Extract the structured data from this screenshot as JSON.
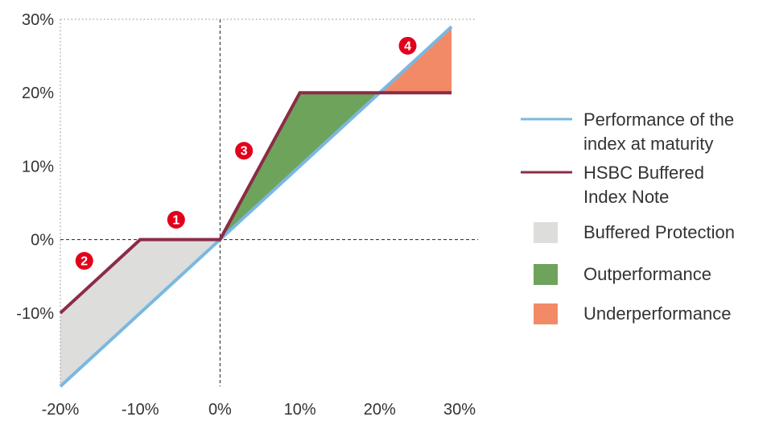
{
  "chart_data": {
    "type": "line",
    "x_ticks": [
      "-20%",
      "-10%",
      "0%",
      "10%",
      "20%",
      "30%"
    ],
    "y_ticks": [
      "30%",
      "20%",
      "10%",
      "0%",
      "-10%"
    ],
    "xlim": [
      -20,
      30
    ],
    "ylim": [
      -20,
      30
    ],
    "series": [
      {
        "name": "Performance of the index at maturity",
        "color": "#7ab8e0",
        "points": [
          [
            -20,
            -20
          ],
          [
            29,
            29
          ]
        ]
      },
      {
        "name": "HSBC Buffered Index Note",
        "color": "#8b2c45",
        "points": [
          [
            -20,
            -10
          ],
          [
            -10,
            0
          ],
          [
            0,
            0
          ],
          [
            10,
            20
          ],
          [
            29,
            20
          ]
        ]
      }
    ],
    "regions": [
      {
        "name": "Buffered Protection",
        "color": "#dddddc",
        "points": [
          [
            -20,
            -20
          ],
          [
            -20,
            -10
          ],
          [
            -10,
            0
          ],
          [
            0,
            0
          ]
        ]
      },
      {
        "name": "Outperformance",
        "color": "#6ea35c",
        "points": [
          [
            0,
            0
          ],
          [
            10,
            20
          ],
          [
            20,
            20
          ]
        ]
      },
      {
        "name": "Underperformance",
        "color": "#f38a67",
        "points": [
          [
            20,
            20
          ],
          [
            29,
            20
          ],
          [
            29,
            29
          ]
        ]
      }
    ],
    "markers": [
      {
        "label": "1",
        "x": -5.5,
        "y": 2.7
      },
      {
        "label": "2",
        "x": -17,
        "y": -2.9
      },
      {
        "label": "3",
        "x": 3,
        "y": 12.1
      },
      {
        "label": "4",
        "x": 23.5,
        "y": 26.4
      }
    ],
    "marker_color": "#e2001a",
    "reference_lines": {
      "x": 0,
      "y": 0,
      "color": "#222222"
    },
    "legend_position": "right",
    "legend": [
      {
        "kind": "line",
        "lines": [
          "Performance of the",
          "index at maturity"
        ],
        "color": "#7ab8e0"
      },
      {
        "kind": "line",
        "lines": [
          "HSBC Buffered",
          "Index Note"
        ],
        "color": "#8b2c45"
      },
      {
        "kind": "box",
        "lines": [
          "Buffered Protection"
        ],
        "color": "#dddddc"
      },
      {
        "kind": "box",
        "lines": [
          "Outperformance"
        ],
        "color": "#6ea35c"
      },
      {
        "kind": "box",
        "lines": [
          "Underperformance"
        ],
        "color": "#f38a67"
      }
    ]
  }
}
